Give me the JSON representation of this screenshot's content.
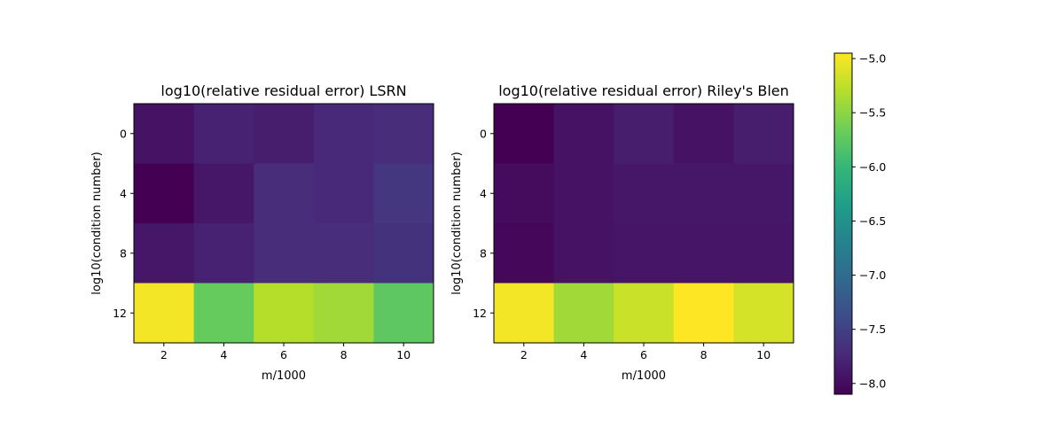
{
  "colormap": "viridis",
  "chart_data": [
    {
      "type": "heatmap",
      "title": "log10(relative residual error) LSRN",
      "xlabel": "m/1000",
      "ylabel": "log10(condition number)",
      "x": [
        2,
        4,
        6,
        8,
        10
      ],
      "y": [
        0,
        4,
        8,
        12
      ],
      "xticks": [
        "2",
        "4",
        "6",
        "8",
        "10"
      ],
      "yticks": [
        "0",
        "4",
        "8",
        "12"
      ],
      "values": [
        [
          -7.95,
          -7.8,
          -7.85,
          -7.75,
          -7.7
        ],
        [
          -8.1,
          -7.9,
          -7.7,
          -7.75,
          -7.6
        ],
        [
          -7.9,
          -7.8,
          -7.7,
          -7.7,
          -7.65
        ],
        [
          -5.0,
          -5.7,
          -5.3,
          -5.4,
          -5.75
        ]
      ]
    },
    {
      "type": "heatmap",
      "title": "log10(relative residual error) Riley's Blen",
      "xlabel": "m/1000",
      "ylabel": "log10(condition number)",
      "x": [
        2,
        4,
        6,
        8,
        10
      ],
      "y": [
        0,
        4,
        8,
        12
      ],
      "xticks": [
        "2",
        "4",
        "6",
        "8",
        "10"
      ],
      "yticks": [
        "0",
        "4",
        "8",
        "12"
      ],
      "values": [
        [
          -8.1,
          -7.95,
          -7.85,
          -7.95,
          -7.85
        ],
        [
          -8.0,
          -7.95,
          -7.9,
          -7.9,
          -7.9
        ],
        [
          -8.05,
          -7.95,
          -7.92,
          -7.92,
          -7.92
        ],
        [
          -5.0,
          -5.4,
          -5.2,
          -4.95,
          -5.15
        ]
      ]
    }
  ],
  "colorbar": {
    "min": -8.1,
    "max": -4.95,
    "ticks": [
      -5.0,
      -5.5,
      -6.0,
      -6.5,
      -7.0,
      -7.5,
      -8.0
    ],
    "tick_labels": [
      "−5.0",
      "−5.5",
      "−6.0",
      "−6.5",
      "−7.0",
      "−7.5",
      "−8.0"
    ]
  }
}
